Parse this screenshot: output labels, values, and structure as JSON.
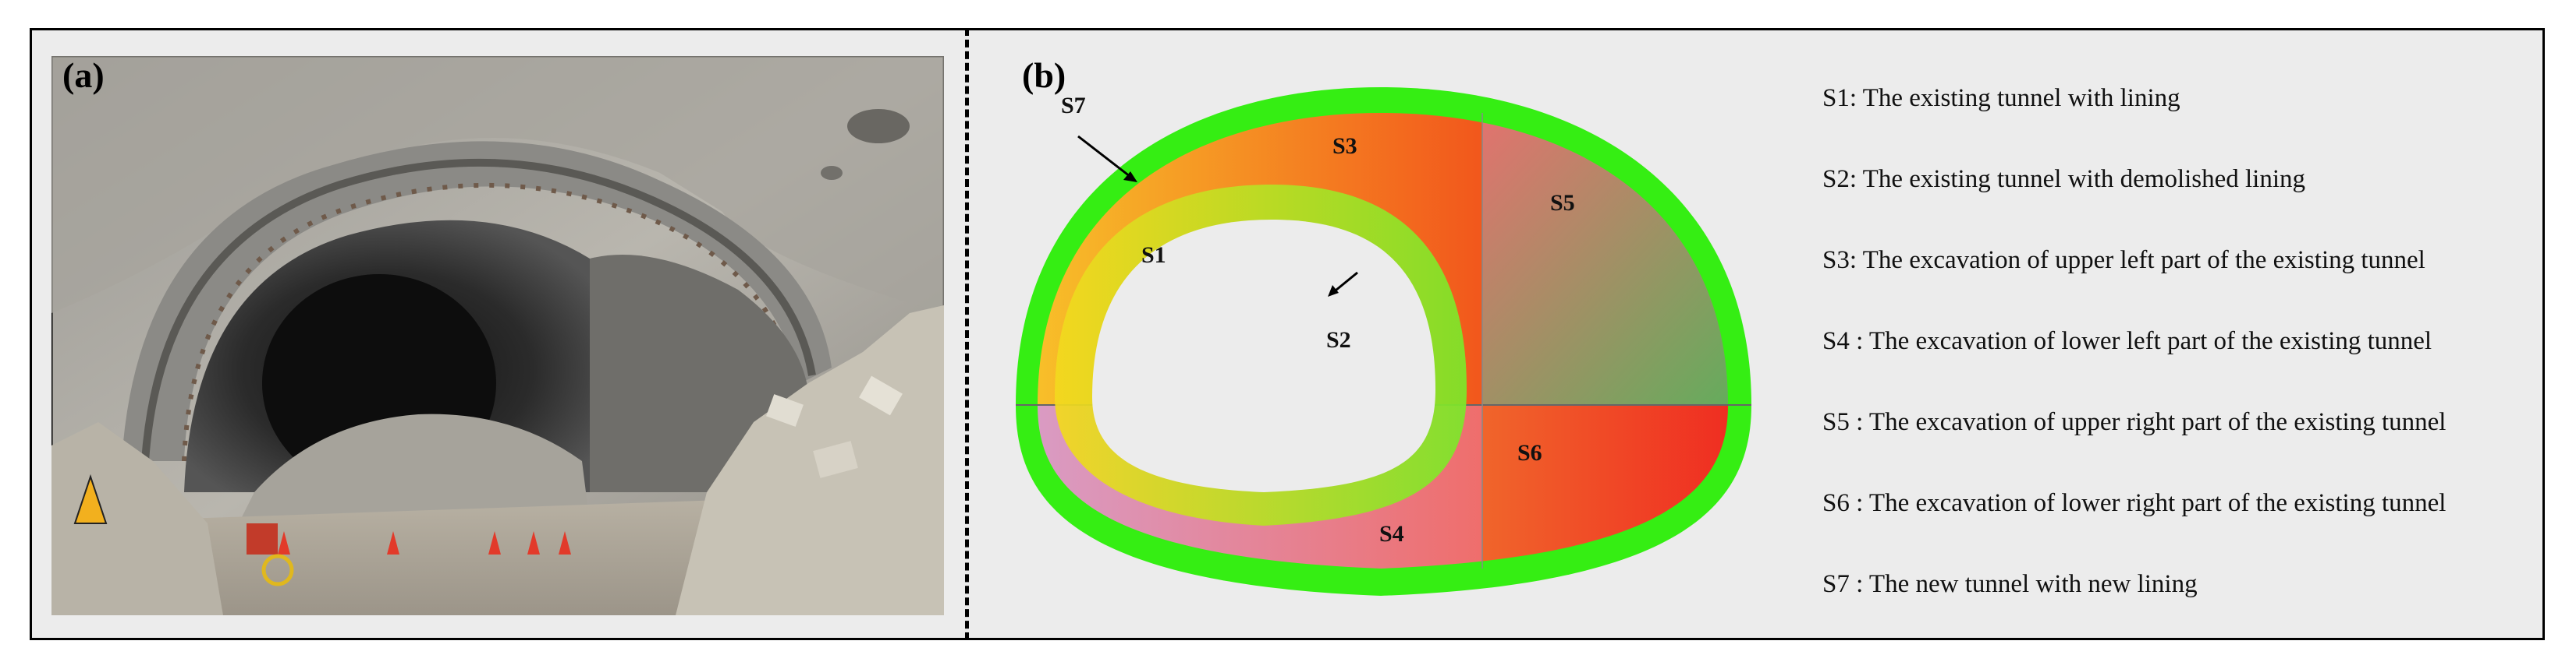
{
  "panel_a": {
    "label": "(a)"
  },
  "panel_b": {
    "label": "(b)"
  },
  "regions": {
    "s1": "S1",
    "s2": "S2",
    "s3": "S3",
    "s4": "S4",
    "s5": "S5",
    "s6": "S6",
    "s7": "S7"
  },
  "legend": [
    "S1: The existing tunnel with lining",
    "S2: The existing tunnel with demolished lining",
    "S3: The excavation of upper left part of the existing tunnel",
    "S4 : The excavation of lower left part of the existing tunnel",
    "S5 : The excavation of upper right part of the existing tunnel",
    "S6 : The excavation of lower right part of the existing tunnel",
    "S7 : The new tunnel with new lining"
  ],
  "colors": {
    "new_lining": "#33ee11",
    "existing_lining": "#7be82a",
    "s3_gradient": [
      "#f7c22c",
      "#f25a1d"
    ],
    "s4_gradient": [
      "#d89bc7",
      "#ee6f6f"
    ],
    "s5_gradient": [
      "#ee6f6f",
      "#5cb15a"
    ],
    "s6_gradient": [
      "#f0612a",
      "#ee2020"
    ],
    "frame_bg": "#ececec"
  }
}
